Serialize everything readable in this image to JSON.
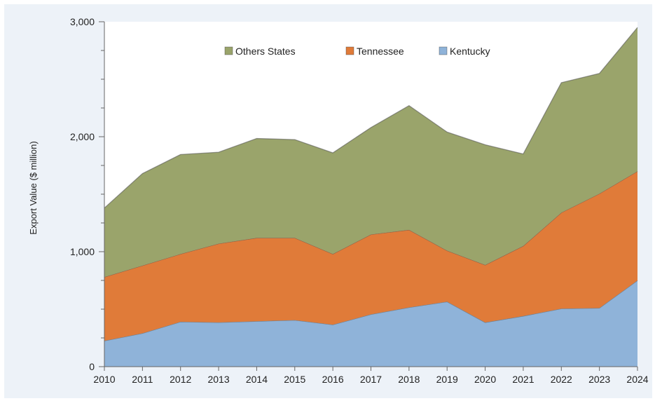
{
  "chart_data": {
    "type": "area",
    "stacked": true,
    "title": "",
    "xlabel": "",
    "ylabel": "Export Value ($ million)",
    "ylim": [
      0,
      3000
    ],
    "yticks": [
      0,
      1000,
      2000,
      3000
    ],
    "ytick_labels": [
      "0",
      "1,000",
      "2,000",
      "3,000"
    ],
    "grid": false,
    "legend_position": "top",
    "x": [
      "2010",
      "2011",
      "2012",
      "2013",
      "2014",
      "2015",
      "2016",
      "2017",
      "2018",
      "2019",
      "2020",
      "2021",
      "2022",
      "2023",
      "2024"
    ],
    "series": [
      {
        "name": "Kentucky",
        "color": "#8fb3d9",
        "values": [
          225,
          290,
          390,
          385,
          395,
          405,
          365,
          455,
          515,
          565,
          385,
          440,
          505,
          510,
          750
        ]
      },
      {
        "name": "Tennessee",
        "color": "#e07b39",
        "values": [
          555,
          590,
          590,
          685,
          725,
          715,
          615,
          695,
          675,
          445,
          500,
          610,
          835,
          995,
          950
        ]
      },
      {
        "name": "Others States",
        "color": "#9aa46b",
        "values": [
          600,
          800,
          865,
          795,
          865,
          855,
          880,
          930,
          1080,
          1030,
          1045,
          800,
          1130,
          1045,
          1250
        ]
      }
    ],
    "legend_order": [
      "Others States",
      "Tennessee",
      "Kentucky"
    ]
  }
}
